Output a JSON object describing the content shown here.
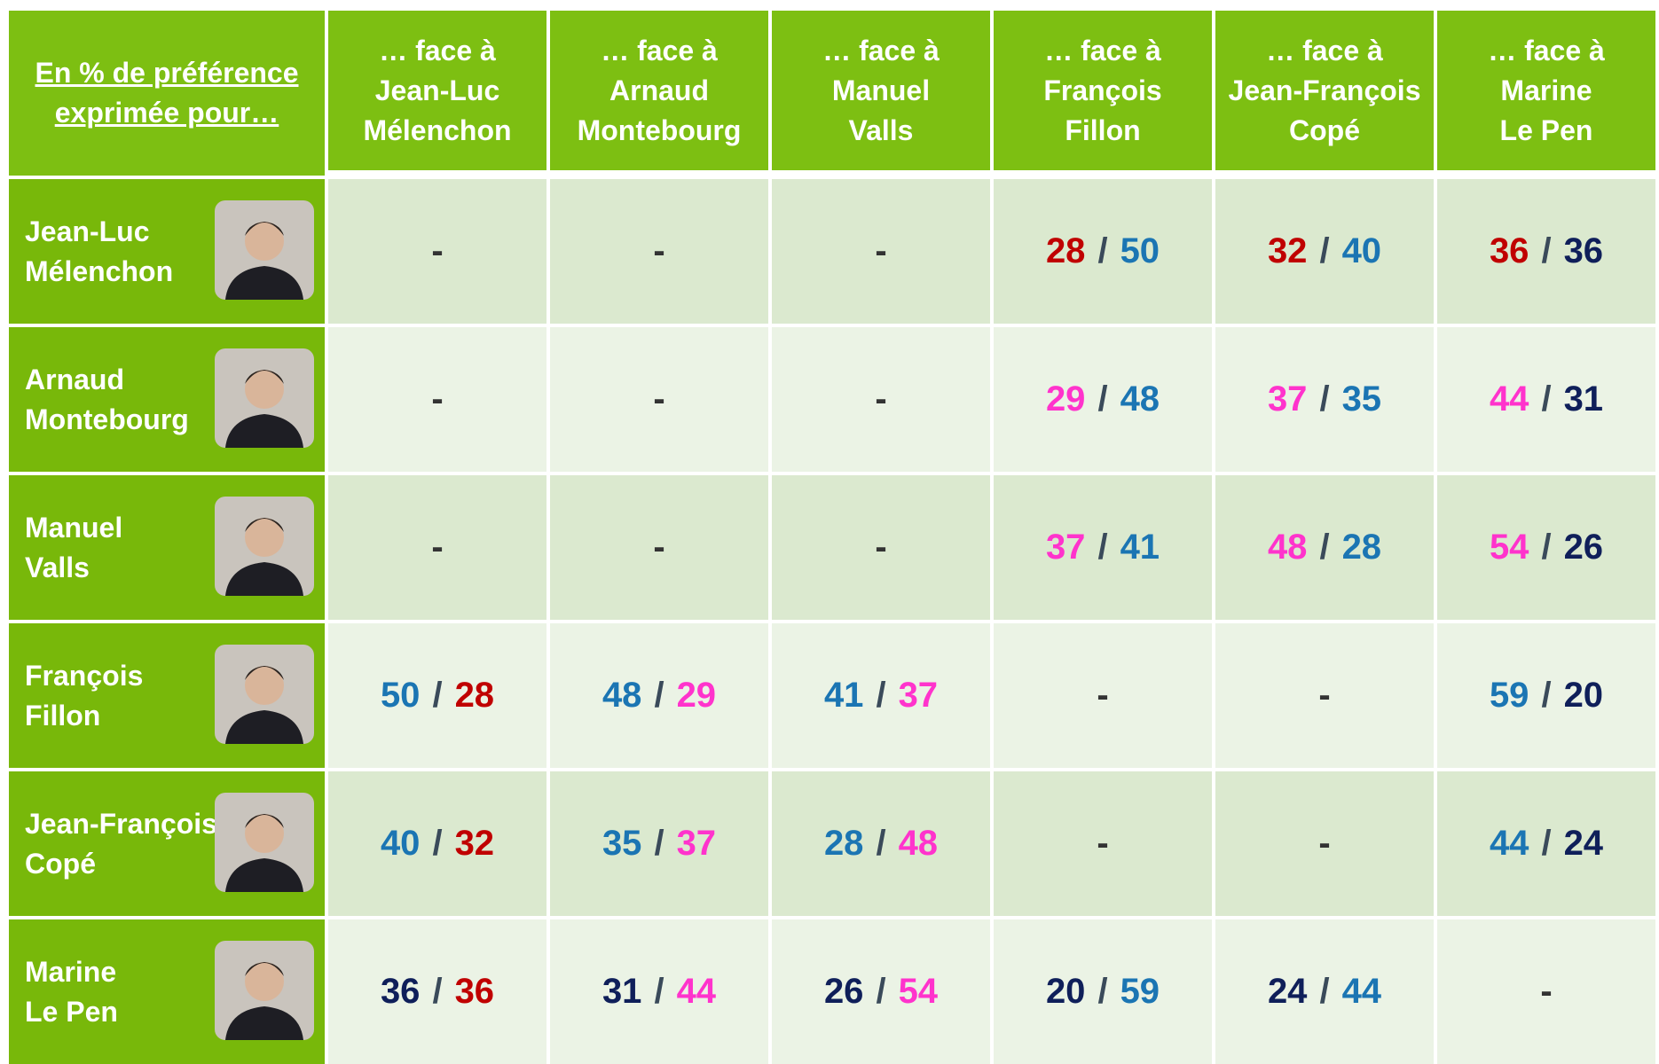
{
  "table": {
    "corner": [
      "En % de préférence",
      "exprimée pour…"
    ],
    "separator": "/",
    "columns": [
      [
        "… face à",
        "Jean-Luc",
        "Mélenchon"
      ],
      [
        "… face à",
        "Arnaud",
        "Montebourg"
      ],
      [
        "… face à",
        "Manuel",
        "Valls"
      ],
      [
        "… face à",
        "François",
        "Fillon"
      ],
      [
        "… face à",
        "Jean-François",
        "Copé"
      ],
      [
        "… face à",
        "Marine",
        "Le Pen"
      ]
    ],
    "rows": [
      {
        "name": [
          "Jean-Luc",
          "Mélenchon"
        ],
        "color": "#c00000",
        "cells": [
          "-",
          "-",
          "-",
          [
            28,
            50
          ],
          [
            32,
            40
          ],
          [
            36,
            36
          ]
        ]
      },
      {
        "name": [
          "Arnaud",
          "Montebourg"
        ],
        "color": "#ff33cc",
        "cells": [
          "-",
          "-",
          "-",
          [
            29,
            48
          ],
          [
            37,
            35
          ],
          [
            44,
            31
          ]
        ]
      },
      {
        "name": [
          "Manuel",
          "Valls"
        ],
        "color": "#ff33cc",
        "cells": [
          "-",
          "-",
          "-",
          [
            37,
            41
          ],
          [
            48,
            28
          ],
          [
            54,
            26
          ]
        ]
      },
      {
        "name": [
          "François",
          "Fillon"
        ],
        "color": "#1b75b3",
        "cells": [
          [
            50,
            28
          ],
          [
            48,
            29
          ],
          [
            41,
            37
          ],
          "-",
          "-",
          [
            59,
            20
          ]
        ]
      },
      {
        "name": [
          "Jean-François",
          "Copé"
        ],
        "color": "#1b75b3",
        "cells": [
          [
            40,
            32
          ],
          [
            35,
            37
          ],
          [
            28,
            48
          ],
          "-",
          "-",
          [
            44,
            24
          ]
        ]
      },
      {
        "name": [
          "Marine",
          "Le Pen"
        ],
        "color": "#0f1f5a",
        "cells": [
          [
            36,
            36
          ],
          [
            31,
            44
          ],
          [
            26,
            54
          ],
          [
            20,
            59
          ],
          [
            24,
            44
          ],
          "-"
        ]
      }
    ]
  }
}
